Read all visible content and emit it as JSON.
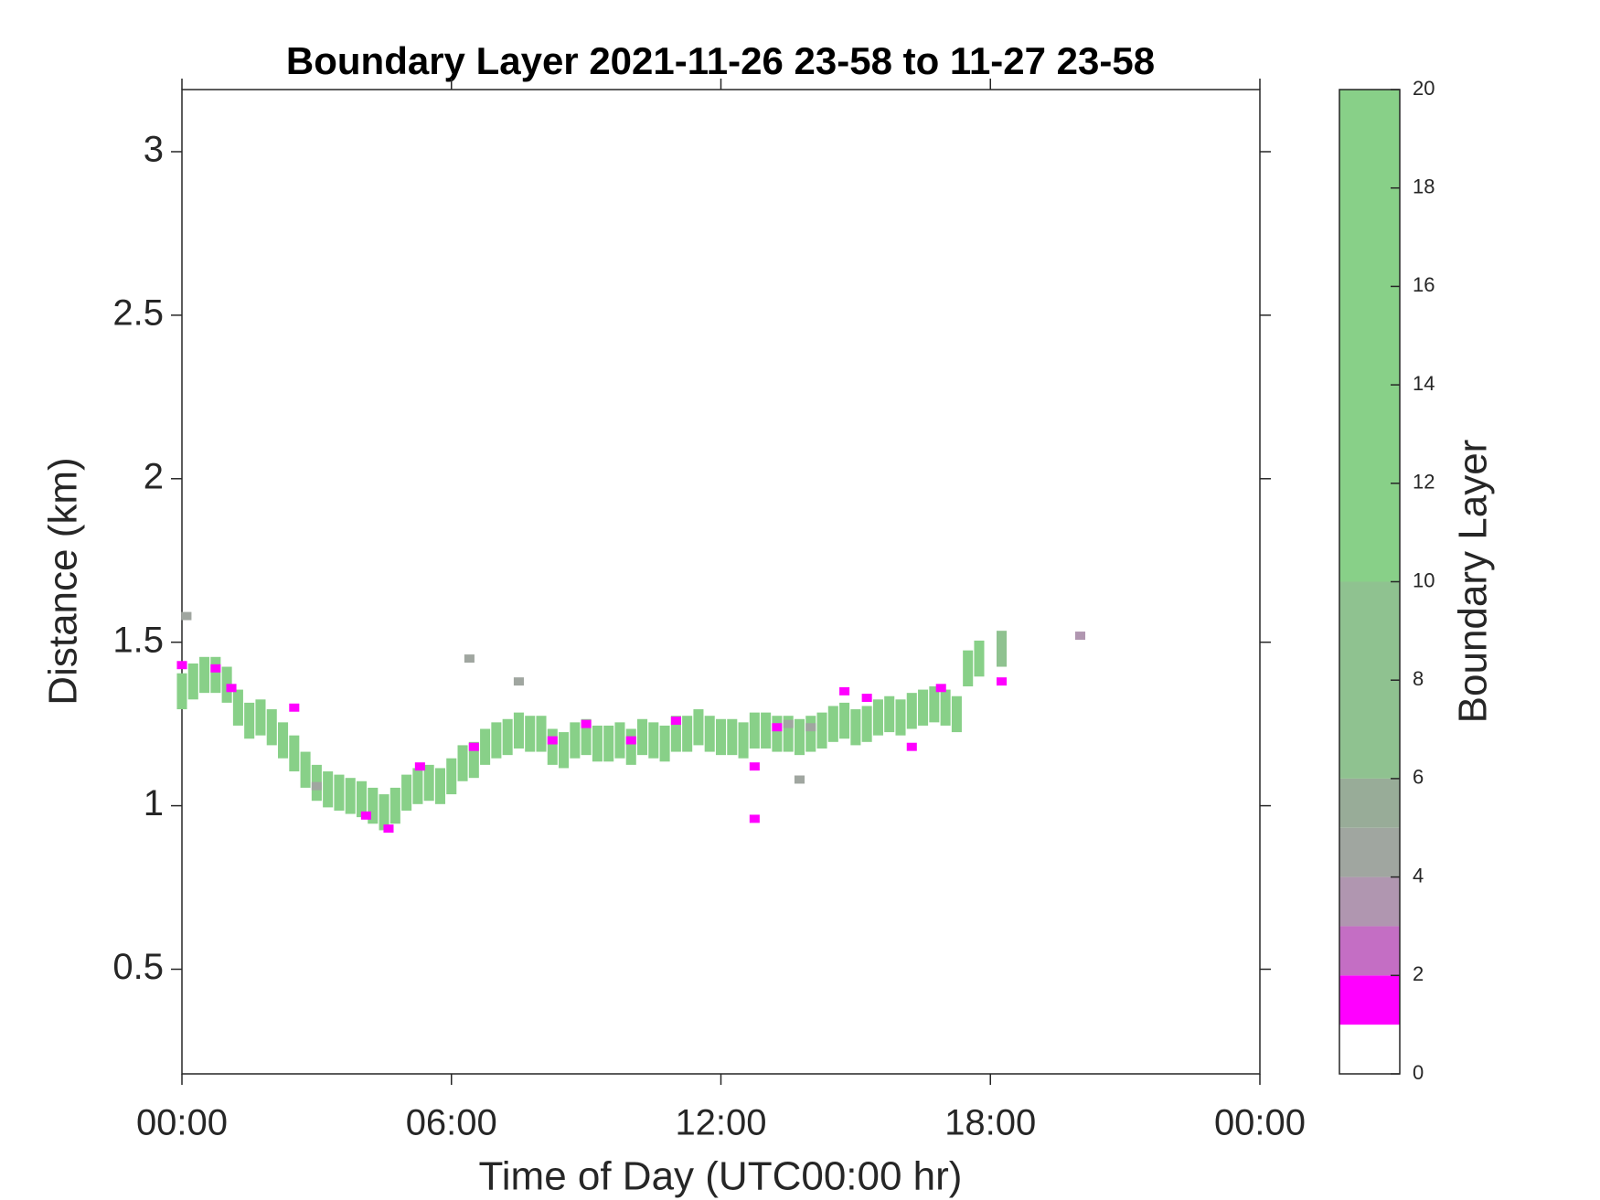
{
  "chart_data": {
    "type": "scatter",
    "title": "Boundary Layer 2021-11-26 23-58 to 11-27 23-58",
    "xlabel": "Time of Day (UTC00:00 hr)",
    "ylabel": "Distance (km)",
    "colorbar_label": "Boundary Layer",
    "xlim": [
      0,
      24
    ],
    "xticks": [
      {
        "value": 0,
        "label": "00:00"
      },
      {
        "value": 6,
        "label": "06:00"
      },
      {
        "value": 12,
        "label": "12:00"
      },
      {
        "value": 18,
        "label": "18:00"
      },
      {
        "value": 24,
        "label": "00:00"
      }
    ],
    "ylim": [
      0.18,
      3.19
    ],
    "yticks": [
      0.5,
      1,
      1.5,
      2,
      2.5,
      3
    ],
    "clim": [
      0,
      20
    ],
    "cticks": [
      0,
      2,
      4,
      6,
      8,
      10,
      12,
      14,
      16,
      18,
      20
    ],
    "colormap": [
      {
        "from": 0,
        "to": 1,
        "color": "#ffffff"
      },
      {
        "from": 1,
        "to": 2,
        "color": "#ff00ff"
      },
      {
        "from": 2,
        "to": 3,
        "color": "#c46ec4"
      },
      {
        "from": 3,
        "to": 4,
        "color": "#b096b0"
      },
      {
        "from": 4,
        "to": 5,
        "color": "#a0a6a0"
      },
      {
        "from": 5,
        "to": 6,
        "color": "#98ac98"
      },
      {
        "from": 6,
        "to": 10,
        "color": "#8fc290"
      },
      {
        "from": 10,
        "to": 20,
        "color": "#88d088"
      }
    ],
    "points": [
      {
        "x": 0,
        "y": 1.35,
        "value": 18
      },
      {
        "x": 0.25,
        "y": 1.38,
        "value": 18
      },
      {
        "x": 0.5,
        "y": 1.4,
        "value": 18
      },
      {
        "x": 0.75,
        "y": 1.4,
        "value": 18
      },
      {
        "x": 1,
        "y": 1.37,
        "value": 18
      },
      {
        "x": 1.25,
        "y": 1.3,
        "value": 18
      },
      {
        "x": 1.5,
        "y": 1.26,
        "value": 18
      },
      {
        "x": 1.75,
        "y": 1.27,
        "value": 18
      },
      {
        "x": 2,
        "y": 1.24,
        "value": 18
      },
      {
        "x": 2.25,
        "y": 1.2,
        "value": 18
      },
      {
        "x": 2.5,
        "y": 1.16,
        "value": 18
      },
      {
        "x": 2.75,
        "y": 1.11,
        "value": 18
      },
      {
        "x": 3,
        "y": 1.07,
        "value": 18
      },
      {
        "x": 3.25,
        "y": 1.05,
        "value": 18
      },
      {
        "x": 3.5,
        "y": 1.04,
        "value": 18
      },
      {
        "x": 3.75,
        "y": 1.03,
        "value": 18
      },
      {
        "x": 4,
        "y": 1.02,
        "value": 18
      },
      {
        "x": 4.25,
        "y": 1,
        "value": 18
      },
      {
        "x": 4.5,
        "y": 0.98,
        "value": 18
      },
      {
        "x": 4.75,
        "y": 1,
        "value": 18
      },
      {
        "x": 5,
        "y": 1.04,
        "value": 18
      },
      {
        "x": 5.25,
        "y": 1.06,
        "value": 18
      },
      {
        "x": 5.5,
        "y": 1.07,
        "value": 18
      },
      {
        "x": 5.75,
        "y": 1.06,
        "value": 18
      },
      {
        "x": 6,
        "y": 1.09,
        "value": 18
      },
      {
        "x": 6.25,
        "y": 1.13,
        "value": 18
      },
      {
        "x": 6.5,
        "y": 1.14,
        "value": 18
      },
      {
        "x": 6.75,
        "y": 1.18,
        "value": 18
      },
      {
        "x": 7,
        "y": 1.2,
        "value": 18
      },
      {
        "x": 7.25,
        "y": 1.21,
        "value": 18
      },
      {
        "x": 7.5,
        "y": 1.23,
        "value": 18
      },
      {
        "x": 7.75,
        "y": 1.22,
        "value": 18
      },
      {
        "x": 8,
        "y": 1.22,
        "value": 18
      },
      {
        "x": 8.25,
        "y": 1.18,
        "value": 18
      },
      {
        "x": 8.5,
        "y": 1.17,
        "value": 18
      },
      {
        "x": 8.75,
        "y": 1.2,
        "value": 18
      },
      {
        "x": 9,
        "y": 1.21,
        "value": 18
      },
      {
        "x": 9.25,
        "y": 1.19,
        "value": 18
      },
      {
        "x": 9.5,
        "y": 1.19,
        "value": 18
      },
      {
        "x": 9.75,
        "y": 1.2,
        "value": 18
      },
      {
        "x": 10,
        "y": 1.18,
        "value": 18
      },
      {
        "x": 10.25,
        "y": 1.21,
        "value": 18
      },
      {
        "x": 10.5,
        "y": 1.2,
        "value": 18
      },
      {
        "x": 10.75,
        "y": 1.19,
        "value": 18
      },
      {
        "x": 11,
        "y": 1.22,
        "value": 18
      },
      {
        "x": 11.25,
        "y": 1.22,
        "value": 18
      },
      {
        "x": 11.5,
        "y": 1.24,
        "value": 18
      },
      {
        "x": 11.75,
        "y": 1.22,
        "value": 18
      },
      {
        "x": 12,
        "y": 1.21,
        "value": 18
      },
      {
        "x": 12.25,
        "y": 1.21,
        "value": 18
      },
      {
        "x": 12.5,
        "y": 1.2,
        "value": 18
      },
      {
        "x": 12.75,
        "y": 1.23,
        "value": 18
      },
      {
        "x": 13,
        "y": 1.23,
        "value": 18
      },
      {
        "x": 13.25,
        "y": 1.22,
        "value": 18
      },
      {
        "x": 13.5,
        "y": 1.22,
        "value": 18
      },
      {
        "x": 13.75,
        "y": 1.21,
        "value": 18
      },
      {
        "x": 14,
        "y": 1.22,
        "value": 18
      },
      {
        "x": 14.25,
        "y": 1.23,
        "value": 18
      },
      {
        "x": 14.5,
        "y": 1.25,
        "value": 18
      },
      {
        "x": 14.75,
        "y": 1.26,
        "value": 18
      },
      {
        "x": 15,
        "y": 1.24,
        "value": 18
      },
      {
        "x": 15.25,
        "y": 1.25,
        "value": 18
      },
      {
        "x": 15.5,
        "y": 1.27,
        "value": 18
      },
      {
        "x": 15.75,
        "y": 1.28,
        "value": 18
      },
      {
        "x": 16,
        "y": 1.27,
        "value": 18
      },
      {
        "x": 16.25,
        "y": 1.29,
        "value": 18
      },
      {
        "x": 16.5,
        "y": 1.3,
        "value": 18
      },
      {
        "x": 16.75,
        "y": 1.31,
        "value": 18
      },
      {
        "x": 17,
        "y": 1.3,
        "value": 18
      },
      {
        "x": 17.25,
        "y": 1.28,
        "value": 18
      },
      {
        "x": 17.5,
        "y": 1.42,
        "value": 18
      },
      {
        "x": 17.75,
        "y": 1.45,
        "value": 18
      },
      {
        "x": 18.25,
        "y": 1.48,
        "value": 8
      },
      {
        "x": 0.1,
        "y": 1.58,
        "value": 4.5
      },
      {
        "x": 0,
        "y": 1.43,
        "value": 1.5
      },
      {
        "x": 0.75,
        "y": 1.42,
        "value": 1.5
      },
      {
        "x": 1.1,
        "y": 1.36,
        "value": 1.5
      },
      {
        "x": 2.5,
        "y": 1.3,
        "value": 1.5
      },
      {
        "x": 3,
        "y": 1.06,
        "value": 4.5
      },
      {
        "x": 4.1,
        "y": 0.97,
        "value": 1.5
      },
      {
        "x": 4.6,
        "y": 0.93,
        "value": 1.5
      },
      {
        "x": 5.3,
        "y": 1.12,
        "value": 1.5
      },
      {
        "x": 6.5,
        "y": 1.18,
        "value": 1.5
      },
      {
        "x": 6.4,
        "y": 1.45,
        "value": 4.5
      },
      {
        "x": 7.5,
        "y": 1.38,
        "value": 4.5
      },
      {
        "x": 8.25,
        "y": 1.2,
        "value": 1.5
      },
      {
        "x": 9,
        "y": 1.25,
        "value": 1.5
      },
      {
        "x": 10,
        "y": 1.2,
        "value": 1.5
      },
      {
        "x": 11,
        "y": 1.26,
        "value": 1.5
      },
      {
        "x": 12.75,
        "y": 1.12,
        "value": 1.5
      },
      {
        "x": 12.75,
        "y": 0.96,
        "value": 1.5
      },
      {
        "x": 13.25,
        "y": 1.24,
        "value": 1.5
      },
      {
        "x": 13.5,
        "y": 1.25,
        "value": 4.5
      },
      {
        "x": 14,
        "y": 1.24,
        "value": 4.5
      },
      {
        "x": 14.75,
        "y": 1.35,
        "value": 1.5
      },
      {
        "x": 15.25,
        "y": 1.33,
        "value": 1.5
      },
      {
        "x": 16.25,
        "y": 1.18,
        "value": 1.5
      },
      {
        "x": 16.9,
        "y": 1.36,
        "value": 1.5
      },
      {
        "x": 13.75,
        "y": 1.08,
        "value": 4.5
      },
      {
        "x": 18.25,
        "y": 1.38,
        "value": 1.5
      },
      {
        "x": 20,
        "y": 1.52,
        "value": 3
      }
    ]
  }
}
